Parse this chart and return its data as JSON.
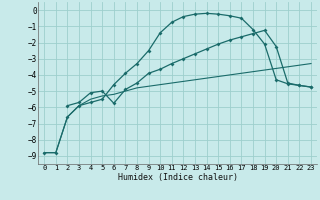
{
  "xlabel": "Humidex (Indice chaleur)",
  "background_color": "#c8eaea",
  "grid_color": "#9ecfcd",
  "line_color": "#1a6b6a",
  "xlim": [
    -0.5,
    23.5
  ],
  "ylim": [
    -9.5,
    0.5
  ],
  "xticks": [
    0,
    1,
    2,
    3,
    4,
    5,
    6,
    7,
    8,
    9,
    10,
    11,
    12,
    13,
    14,
    15,
    16,
    17,
    18,
    19,
    20,
    21,
    22,
    23
  ],
  "yticks": [
    0,
    -1,
    -2,
    -3,
    -4,
    -5,
    -6,
    -7,
    -8,
    -9
  ],
  "curve1_x": [
    0,
    1,
    2,
    3,
    4,
    5,
    6,
    7,
    8,
    9,
    10,
    11,
    12,
    13,
    14,
    15,
    16,
    17,
    18,
    19,
    20,
    21,
    22,
    23
  ],
  "curve1_y": [
    -8.8,
    -8.8,
    -6.6,
    -5.9,
    -5.5,
    -5.3,
    -5.2,
    -5.0,
    -4.8,
    -4.7,
    -4.6,
    -4.5,
    -4.4,
    -4.3,
    -4.2,
    -4.1,
    -4.0,
    -3.9,
    -3.8,
    -3.7,
    -3.6,
    -3.5,
    -3.4,
    -3.3
  ],
  "curve2_x": [
    0,
    1,
    2,
    3,
    4,
    5,
    6,
    7,
    8,
    9,
    10,
    11,
    12,
    13,
    14,
    15,
    16,
    17,
    18,
    19,
    20,
    21,
    22,
    23
  ],
  "curve2_y": [
    -8.8,
    -8.8,
    -6.6,
    -5.9,
    -5.7,
    -5.5,
    -4.6,
    -3.9,
    -3.3,
    -2.5,
    -1.4,
    -0.75,
    -0.4,
    -0.25,
    -0.2,
    -0.25,
    -0.35,
    -0.5,
    -1.2,
    -2.1,
    -4.3,
    -4.55,
    -4.65,
    -4.75
  ],
  "curve3_x": [
    2,
    3,
    4,
    5,
    6,
    7,
    8,
    9,
    10,
    11,
    12,
    13,
    14,
    15,
    16,
    17,
    18,
    19,
    20,
    21,
    22,
    23
  ],
  "curve3_y": [
    -5.9,
    -5.7,
    -5.1,
    -5.0,
    -5.75,
    -4.9,
    -4.5,
    -3.9,
    -3.65,
    -3.3,
    -3.0,
    -2.7,
    -2.4,
    -2.1,
    -1.85,
    -1.65,
    -1.45,
    -1.25,
    -2.25,
    -4.5,
    -4.65,
    -4.75
  ]
}
